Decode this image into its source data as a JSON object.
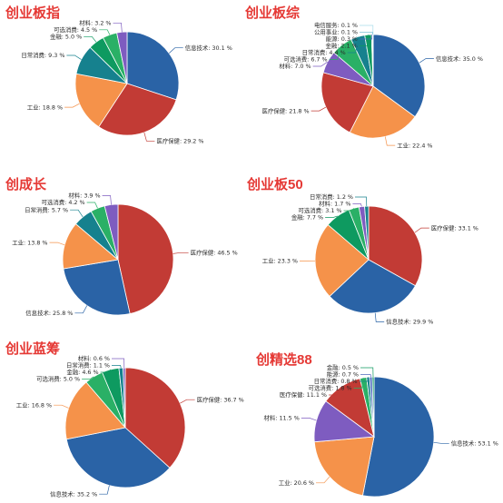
{
  "colors": {
    "title": "#e53935",
    "categories": {
      "信息技术": "#2a63a6",
      "医疗保健": "#c23b35",
      "工业": "#f5924a",
      "日常消费": "#16818e",
      "金融": "#0e9a60",
      "可选消费": "#2ab066",
      "材料": "#7e5cc0",
      "能源": "#4f6bbf",
      "公用事业": "#7fc4d8",
      "电信服务": "#a9dcea"
    }
  },
  "chart_data": [
    {
      "type": "pie",
      "title": "创业板指",
      "slices": [
        {
          "name": "信息技术",
          "value": 30.1,
          "label": "信息技术: 30.1 %"
        },
        {
          "name": "医疗保健",
          "value": 29.2,
          "label": "医疗保健: 29.2 %"
        },
        {
          "name": "工业",
          "value": 18.8,
          "label": "工业: 18.8 %"
        },
        {
          "name": "日常消费",
          "value": 9.3,
          "label": "日常消费: 9.3 %"
        },
        {
          "name": "金融",
          "value": 5.0,
          "label": "金融: 5.0 %"
        },
        {
          "name": "可选消费",
          "value": 4.5,
          "label": "可选消费: 4.5 %"
        },
        {
          "name": "材料",
          "value": 3.2,
          "label": "材料: 3.2 %"
        }
      ]
    },
    {
      "type": "pie",
      "title": "创业板综",
      "slices": [
        {
          "name": "信息技术",
          "value": 35.0,
          "label": "信息技术: 35.0 %"
        },
        {
          "name": "工业",
          "value": 22.4,
          "label": "工业: 22.4 %"
        },
        {
          "name": "医疗保健",
          "value": 21.8,
          "label": "医疗保健: 21.8 %"
        },
        {
          "name": "材料",
          "value": 7.0,
          "label": "材料: 7.0 %"
        },
        {
          "name": "可选消费",
          "value": 6.7,
          "label": "可选消费: 6.7 %"
        },
        {
          "name": "日常消费",
          "value": 4.4,
          "label": "日常消费: 4.4 %"
        },
        {
          "name": "金融",
          "value": 2.1,
          "label": "金融: 2.1 %"
        },
        {
          "name": "能源",
          "value": 0.3,
          "label": "能源: 0.3 %"
        },
        {
          "name": "公用事业",
          "value": 0.1,
          "label": "公用事业: 0.1 %"
        },
        {
          "name": "电信服务",
          "value": 0.1,
          "label": "电信服务: 0.1 %"
        }
      ]
    },
    {
      "type": "pie",
      "title": "创成长",
      "slices": [
        {
          "name": "医疗保健",
          "value": 46.5,
          "label": "医疗保健: 46.5 %"
        },
        {
          "name": "信息技术",
          "value": 25.8,
          "label": "信息技术: 25.8 %"
        },
        {
          "name": "工业",
          "value": 13.8,
          "label": "工业: 13.8 %"
        },
        {
          "name": "日常消费",
          "value": 5.7,
          "label": "日常消费: 5.7 %"
        },
        {
          "name": "可选消费",
          "value": 4.2,
          "label": "可选消费: 4.2 %"
        },
        {
          "name": "材料",
          "value": 3.9,
          "label": "材料: 3.9 %"
        }
      ]
    },
    {
      "type": "pie",
      "title": "创业板50",
      "slices": [
        {
          "name": "医疗保健",
          "value": 33.1,
          "label": "医疗保健: 33.1 %"
        },
        {
          "name": "信息技术",
          "value": 29.9,
          "label": "信息技术: 29.9 %"
        },
        {
          "name": "工业",
          "value": 23.3,
          "label": "工业: 23.3 %"
        },
        {
          "name": "金融",
          "value": 7.7,
          "label": "金融: 7.7 %"
        },
        {
          "name": "可选消费",
          "value": 3.1,
          "label": "可选消费: 3.1 %"
        },
        {
          "name": "材料",
          "value": 1.7,
          "label": "材料: 1.7 %"
        },
        {
          "name": "日常消费",
          "value": 1.2,
          "label": "日常消费: 1.2 %"
        }
      ]
    },
    {
      "type": "pie",
      "title": "创业蓝筹",
      "slices": [
        {
          "name": "医疗保健",
          "value": 36.7,
          "label": "医疗保健: 36.7 %"
        },
        {
          "name": "信息技术",
          "value": 35.2,
          "label": "信息技术: 35.2 %"
        },
        {
          "name": "工业",
          "value": 16.8,
          "label": "工业: 16.8 %"
        },
        {
          "name": "可选消费",
          "value": 5.0,
          "label": "可选消费: 5.0 %"
        },
        {
          "name": "金融",
          "value": 4.6,
          "label": "金融: 4.6 %"
        },
        {
          "name": "日常消费",
          "value": 1.1,
          "label": "日常消费: 1.1 %"
        },
        {
          "name": "材料",
          "value": 0.6,
          "label": "材料: 0.6 %"
        }
      ]
    },
    {
      "type": "pie",
      "title": "创精选88",
      "slices": [
        {
          "name": "信息技术",
          "value": 53.1,
          "label": "信息技术: 53.1 %"
        },
        {
          "name": "工业",
          "value": 20.6,
          "label": "工业: 20.6 %"
        },
        {
          "name": "材料",
          "value": 11.5,
          "label": "材料: 11.5 %"
        },
        {
          "name": "医疗保健",
          "value": 11.1,
          "label": "医疗保健: 11.1 %"
        },
        {
          "name": "可选消费",
          "value": 1.8,
          "label": "可选消费: 1.8 %"
        },
        {
          "name": "日常消费",
          "value": 0.8,
          "label": "日常消费: 0.8 %"
        },
        {
          "name": "能源",
          "value": 0.7,
          "label": "能源: 0.7 %"
        },
        {
          "name": "金融",
          "value": 0.5,
          "label": "金融: 0.5 %"
        }
      ]
    }
  ]
}
